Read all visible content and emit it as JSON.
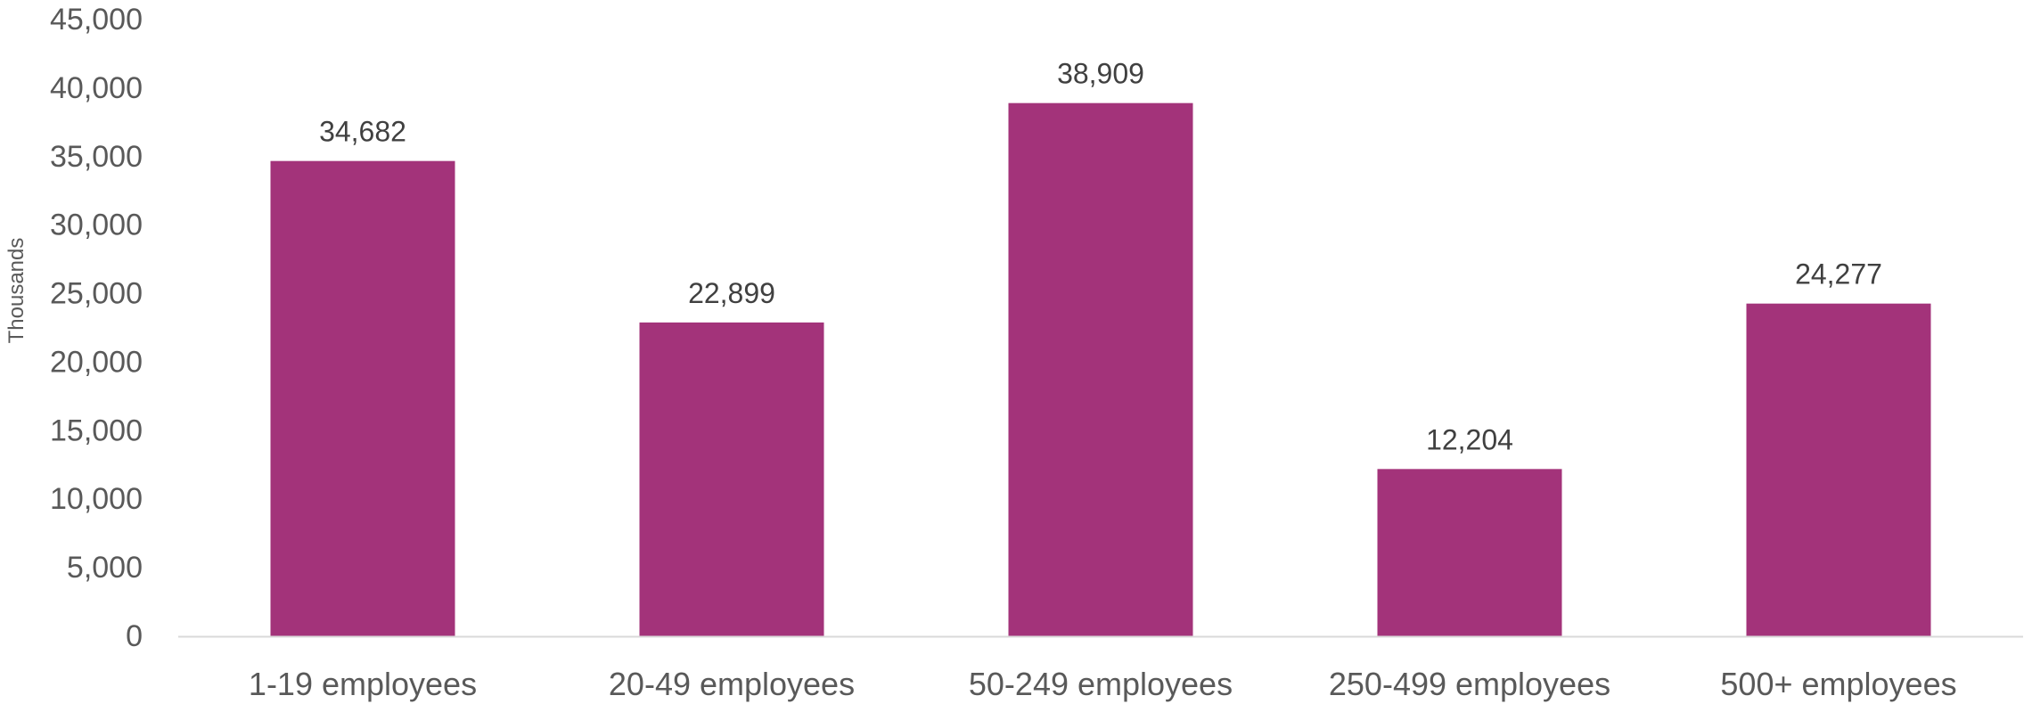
{
  "chart_data": {
    "type": "bar",
    "categories": [
      "1-19 employees",
      "20-49 employees",
      "50-249 employees",
      "250-499 employees",
      "500+ employees"
    ],
    "series": [
      {
        "values": [
          34682,
          22899,
          38909,
          12204,
          24277
        ]
      }
    ],
    "data_labels": [
      "34,682",
      "22,899",
      "38,909",
      "12,204",
      "24,277"
    ],
    "y_ticks": [
      "0",
      "5,000",
      "10,000",
      "15,000",
      "20,000",
      "25,000",
      "30,000",
      "35,000",
      "40,000",
      "45,000"
    ],
    "title": "",
    "xlabel": "",
    "ylabel": "Thousands",
    "ylim": [
      0,
      45000
    ],
    "grid": false,
    "legend": "none",
    "bar_color": "#A3337A",
    "axis_color": "#D9D9D9"
  }
}
